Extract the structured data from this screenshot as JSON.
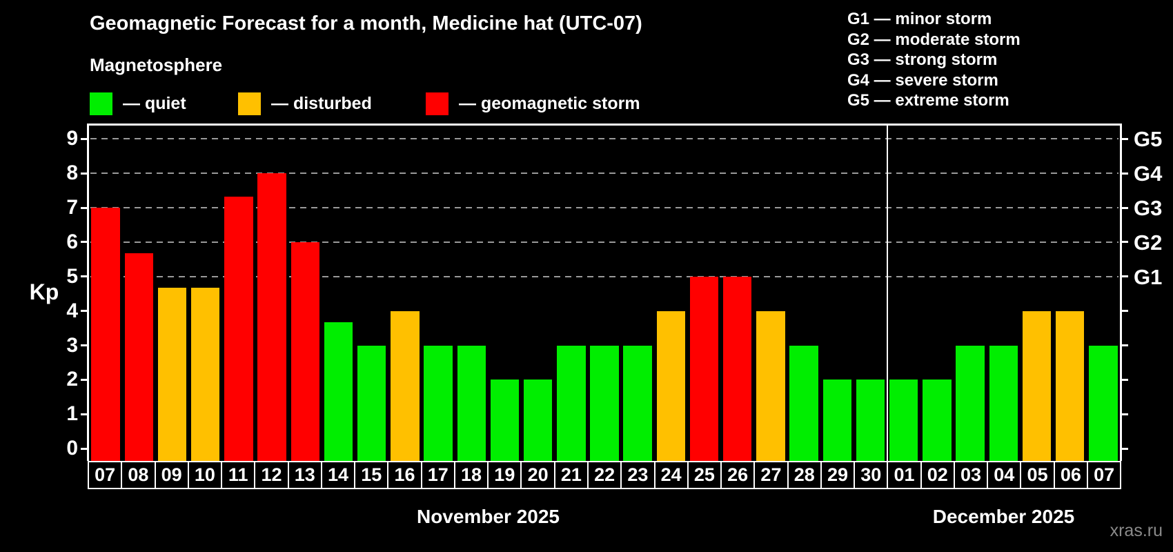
{
  "title": "Geomagnetic Forecast for a month, Medicine hat (UTC-07)",
  "subtitle": "Magnetosphere",
  "legend": {
    "items": [
      {
        "label": "— quiet",
        "status": "quiet"
      },
      {
        "label": "— disturbed",
        "status": "disturbed"
      },
      {
        "label": "— geomagnetic storm",
        "status": "storm"
      }
    ]
  },
  "g_legend": {
    "items": [
      "G1 — minor storm",
      "G2 — moderate storm",
      "G3 — strong storm",
      "G4 — severe storm",
      "G5 — extreme storm"
    ]
  },
  "colors": {
    "quiet": "#00ee00",
    "disturbed": "#ffc000",
    "storm": "#ff0000",
    "axis": "#ffffff",
    "grid": "#9a9a9a",
    "watermark": "#8a8a8a"
  },
  "watermark": "xras.ru",
  "x_axis": {
    "months": [
      {
        "label": "November 2025",
        "days": 24
      },
      {
        "label": "December 2025",
        "days": 7
      }
    ]
  },
  "chart_data": {
    "type": "bar",
    "title": "Geomagnetic Forecast for a month, Medicine hat (UTC-07)",
    "ylabel": "Kp",
    "ylim": [
      0,
      9
    ],
    "yticks": [
      0,
      1,
      2,
      3,
      4,
      5,
      6,
      7,
      8,
      9
    ],
    "grid": "dashed-horizontal",
    "gridlines_at": [
      5,
      6,
      7,
      8,
      9
    ],
    "legend_position": "top-left",
    "right_axis": {
      "labels": [
        "G1",
        "G2",
        "G3",
        "G4",
        "G5"
      ],
      "values": [
        5,
        6,
        7,
        8,
        9
      ]
    },
    "categories": [
      "07",
      "08",
      "09",
      "10",
      "11",
      "12",
      "13",
      "14",
      "15",
      "16",
      "17",
      "18",
      "19",
      "20",
      "21",
      "22",
      "23",
      "24",
      "25",
      "26",
      "27",
      "28",
      "29",
      "30",
      "01",
      "02",
      "03",
      "04",
      "05",
      "06",
      "07"
    ],
    "values": [
      7,
      5.67,
      4.67,
      4.67,
      7.33,
      8,
      6,
      3.67,
      3,
      4,
      3,
      3,
      2,
      2,
      3,
      3,
      3,
      4,
      5,
      5,
      4,
      3,
      2,
      2,
      2,
      2,
      3,
      3,
      4,
      4,
      3
    ],
    "statuses": [
      "storm",
      "storm",
      "disturbed",
      "disturbed",
      "storm",
      "storm",
      "storm",
      "quiet",
      "quiet",
      "disturbed",
      "quiet",
      "quiet",
      "quiet",
      "quiet",
      "quiet",
      "quiet",
      "quiet",
      "disturbed",
      "storm",
      "storm",
      "disturbed",
      "quiet",
      "quiet",
      "quiet",
      "quiet",
      "quiet",
      "quiet",
      "quiet",
      "disturbed",
      "disturbed",
      "quiet"
    ],
    "month_boundary_index": 24
  }
}
